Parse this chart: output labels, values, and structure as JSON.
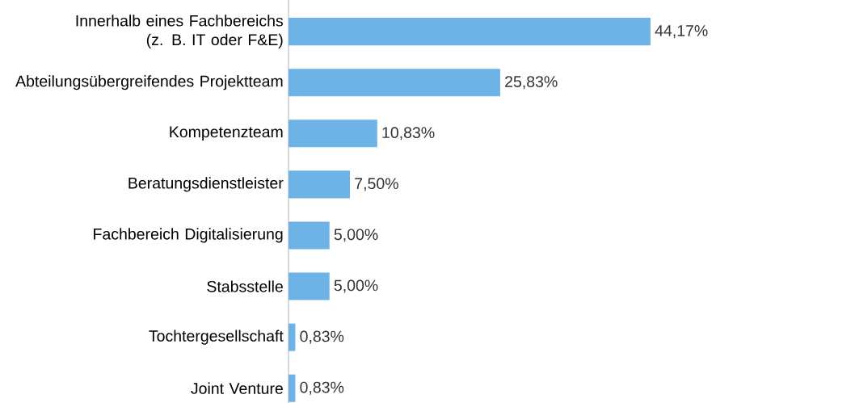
{
  "chart_data": {
    "type": "bar",
    "orientation": "horizontal",
    "categories": [
      "Innerhalb eines Fachbereichs (z. B. IT oder F&E)",
      "Abteilungsübergreifendes Projektteam",
      "Kompetenzteam",
      "Beratungsdienstleister",
      "Fachbereich Digitalisierung",
      "Stabsstelle",
      "Tochtergesellschaft",
      "Joint Venture"
    ],
    "values": [
      44.17,
      25.83,
      10.83,
      7.5,
      5.0,
      5.0,
      0.83,
      0.83
    ],
    "value_labels": [
      "44,17%",
      "25,83%",
      "10,83%",
      "7,50%",
      "5,00%",
      "5,00%",
      "0,83%",
      "0,83%"
    ],
    "color": "#6db3e6"
  }
}
